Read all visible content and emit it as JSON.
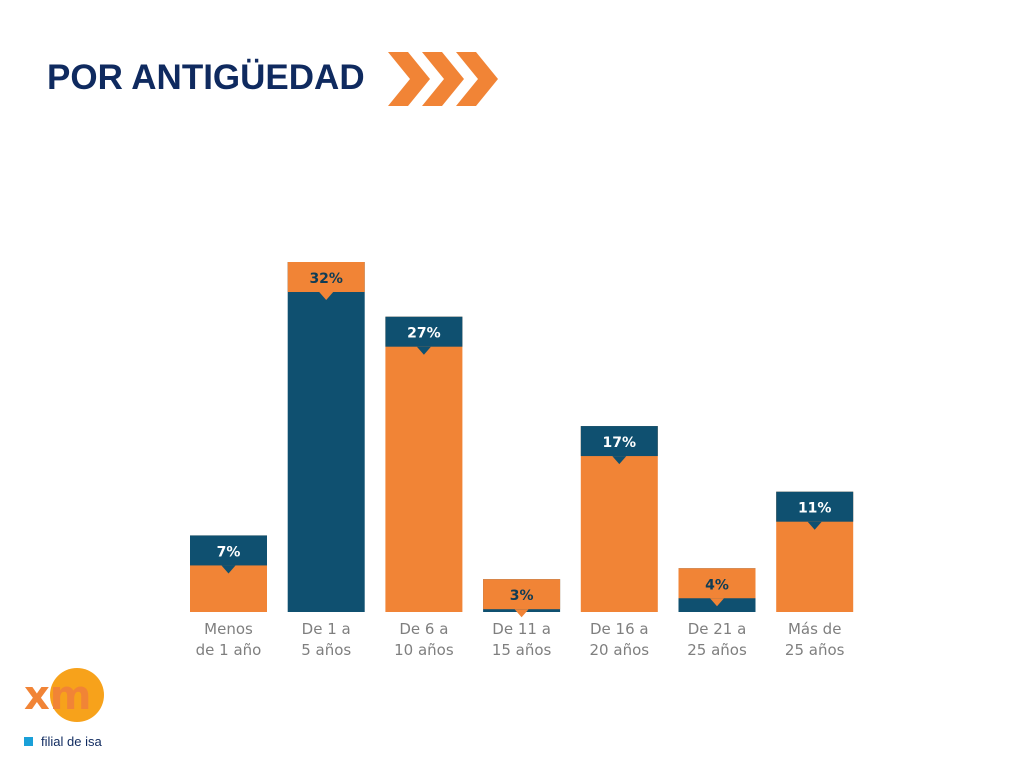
{
  "header": {
    "title": "POR ANTIGÜEDAD"
  },
  "colors": {
    "orange": "#f18436",
    "teal": "#0f5070",
    "title": "#0f2a5f",
    "label_on_teal": "#ffffff",
    "label_on_orange": "#0f3c55"
  },
  "chart_data": {
    "type": "bar",
    "title": "",
    "xlabel": "",
    "ylabel": "",
    "unit": "%",
    "ylim": [
      0,
      35
    ],
    "grid": false,
    "categories": [
      [
        "Menos",
        "de 1 año"
      ],
      [
        "De 1 a",
        "5 años"
      ],
      [
        "De 6 a",
        "10 años"
      ],
      [
        "De 11 a",
        "15 años"
      ],
      [
        "De 16 a",
        "20 años"
      ],
      [
        "De 21 a",
        "25 años"
      ],
      [
        "Más de",
        "25 años"
      ]
    ],
    "values": [
      7,
      32,
      27,
      3,
      17,
      4,
      11
    ],
    "labels": [
      "7%",
      "32%",
      "27%",
      "3%",
      "17%",
      "4%",
      "11%"
    ],
    "bar_color": [
      "orange",
      "teal",
      "orange",
      "teal",
      "orange",
      "teal",
      "orange"
    ]
  },
  "logo": {
    "brand": "xm",
    "tagline": "filial de isa"
  }
}
